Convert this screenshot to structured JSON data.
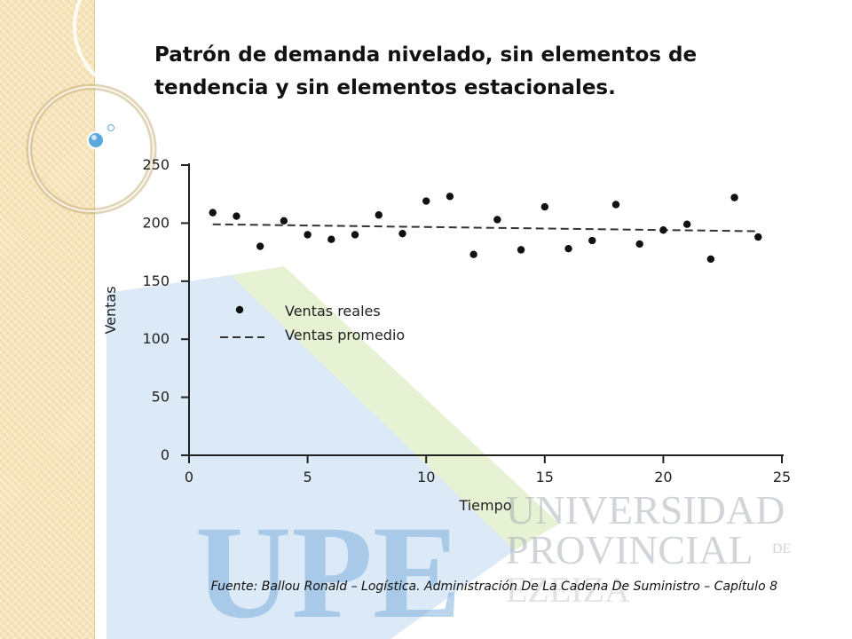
{
  "slide": {
    "title": "Patrón de demanda nivelado, sin elementos de tendencia y sin elementos estacionales.",
    "source": "Fuente: Ballou Ronald – Logística. Administración De La Cadena De Suministro – Capítulo 8"
  },
  "watermark": {
    "logo_text": "UPE",
    "line1": "UNIVERSIDAD",
    "line2": "PROVINCIAL",
    "line2_suffix": "DE",
    "line3": "EZEIZA",
    "color": "#4a8fd0"
  },
  "chart_data": {
    "type": "scatter",
    "title": "",
    "xlabel": "Tiempo",
    "ylabel": "Ventas",
    "xlim": [
      0,
      25
    ],
    "ylim": [
      0,
      250
    ],
    "xticks": [
      0,
      5,
      10,
      15,
      20,
      25
    ],
    "yticks": [
      0,
      50,
      100,
      150,
      200,
      250
    ],
    "grid": false,
    "legend_position": "left-center",
    "series": [
      {
        "name": "Ventas reales",
        "marker": "dot",
        "x": [
          1,
          2,
          3,
          4,
          5,
          6,
          7,
          8,
          9,
          10,
          11,
          12,
          13,
          14,
          15,
          16,
          17,
          18,
          19,
          20,
          21,
          22,
          23,
          24
        ],
        "y": [
          209,
          206,
          180,
          202,
          190,
          186,
          190,
          207,
          191,
          219,
          223,
          173,
          203,
          177,
          214,
          178,
          185,
          216,
          182,
          194,
          199,
          169,
          222,
          188
        ]
      },
      {
        "name": "Ventas promedio",
        "marker": "dashed-line",
        "x": [
          1,
          24
        ],
        "y": [
          199,
          193
        ]
      }
    ]
  }
}
